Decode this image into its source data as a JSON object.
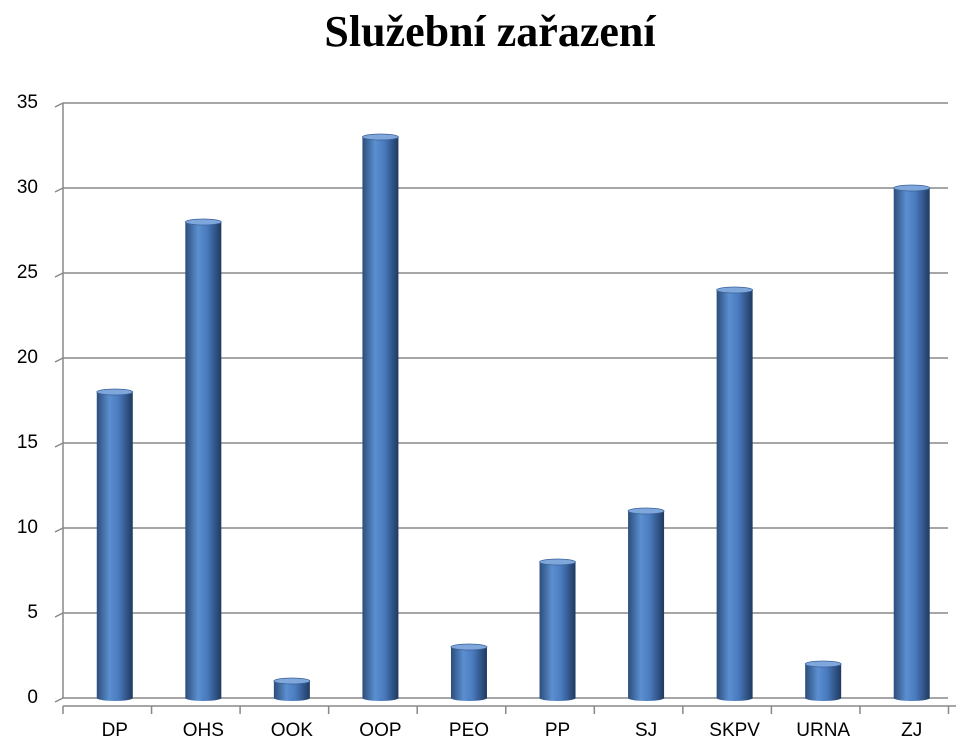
{
  "chart_data": {
    "type": "bar",
    "title": "Služební zařazení",
    "categories": [
      "DP",
      "OHS",
      "OOK",
      "OOP",
      "PEO",
      "PP",
      "SJ",
      "SKPV",
      "URNA",
      "ZJ"
    ],
    "values": [
      18,
      28,
      1,
      33,
      3,
      8,
      11,
      24,
      2,
      30
    ],
    "color": "#4f81bd",
    "ylim": [
      0,
      35
    ],
    "yticks": [
      0,
      5,
      10,
      15,
      20,
      25,
      30,
      35
    ],
    "grid": true
  }
}
